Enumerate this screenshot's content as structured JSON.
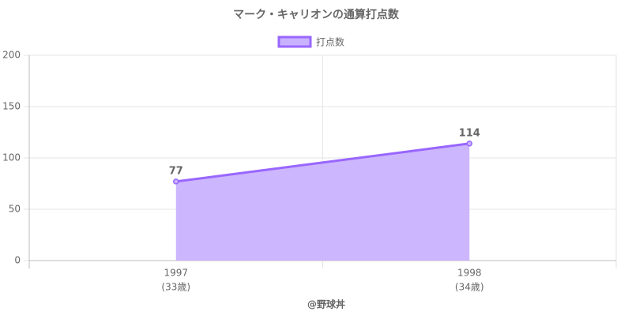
{
  "chart_data": {
    "type": "area",
    "title": "マーク・キャリオンの通算打点数",
    "categories": [
      "1997",
      "1998"
    ],
    "category_sublabels": [
      "(33歳)",
      "(34歳)"
    ],
    "series": [
      {
        "name": "打点数",
        "color": "#9966ff",
        "fill": "#c9b2fd",
        "values": [
          77,
          114
        ]
      }
    ],
    "ylim": [
      0,
      200
    ],
    "yticks": [
      0,
      50,
      100,
      150,
      200
    ],
    "grid": true,
    "legend": "top",
    "footer": "@野球丼"
  }
}
